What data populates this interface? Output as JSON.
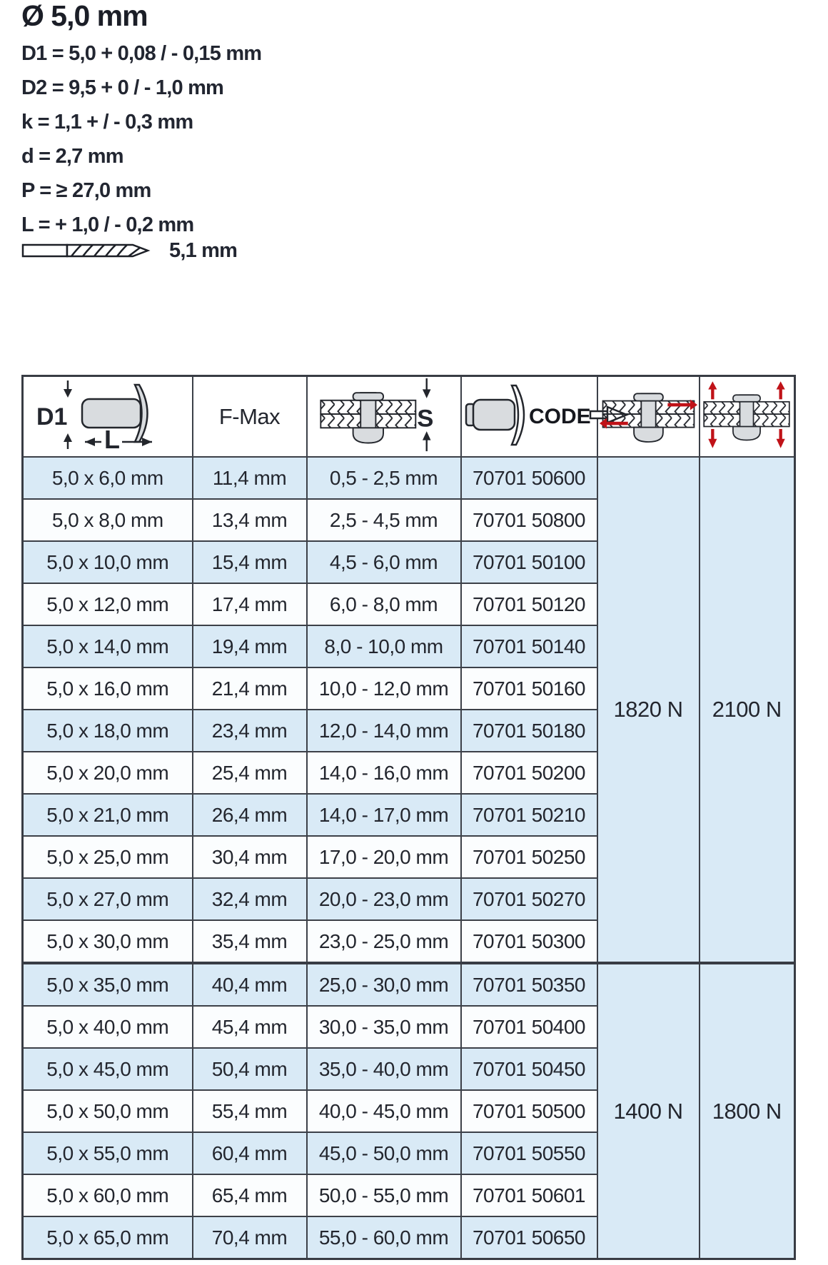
{
  "header": {
    "title": "Ø 5,0 mm",
    "specs": [
      "D1 = 5,0 + 0,08 / - 0,15 mm",
      "D2 = 9,5 + 0 / - 1,0 mm",
      "k = 1,1 + / - 0,3 mm",
      "d = 2,7 mm",
      "P = ≥ 27,0 mm",
      "L = + 1,0 / - 0,2 mm"
    ],
    "drill_size": "5,1 mm"
  },
  "table": {
    "header": {
      "d1_label": "D1",
      "l_label": "L",
      "fmax_label": "F-Max",
      "s_label": "S",
      "code_label": "CODE"
    },
    "rows": [
      {
        "dimension": "5,0 x 6,0 mm",
        "f_max": "11,4 mm",
        "grip_range": "0,5 - 2,5 mm",
        "code": "70701 50600"
      },
      {
        "dimension": "5,0 x 8,0 mm",
        "f_max": "13,4 mm",
        "grip_range": "2,5 - 4,5 mm",
        "code": "70701 50800"
      },
      {
        "dimension": "5,0 x 10,0 mm",
        "f_max": "15,4 mm",
        "grip_range": "4,5 - 6,0 mm",
        "code": "70701 50100"
      },
      {
        "dimension": "5,0 x 12,0 mm",
        "f_max": "17,4 mm",
        "grip_range": "6,0 - 8,0 mm",
        "code": "70701 50120"
      },
      {
        "dimension": "5,0 x 14,0 mm",
        "f_max": "19,4 mm",
        "grip_range": "8,0 - 10,0 mm",
        "code": "70701 50140"
      },
      {
        "dimension": "5,0 x 16,0 mm",
        "f_max": "21,4 mm",
        "grip_range": "10,0 - 12,0 mm",
        "code": "70701 50160"
      },
      {
        "dimension": "5,0 x 18,0 mm",
        "f_max": "23,4 mm",
        "grip_range": "12,0 - 14,0 mm",
        "code": "70701 50180"
      },
      {
        "dimension": "5,0 x 20,0 mm",
        "f_max": "25,4 mm",
        "grip_range": "14,0 - 16,0 mm",
        "code": "70701 50200"
      },
      {
        "dimension": "5,0 x 21,0 mm",
        "f_max": "26,4 mm",
        "grip_range": "14,0 - 17,0 mm",
        "code": "70701 50210"
      },
      {
        "dimension": "5,0 x 25,0 mm",
        "f_max": "30,4 mm",
        "grip_range": "17,0 - 20,0 mm",
        "code": "70701 50250"
      },
      {
        "dimension": "5,0 x 27,0 mm",
        "f_max": "32,4 mm",
        "grip_range": "20,0 - 23,0 mm",
        "code": "70701 50270"
      },
      {
        "dimension": "5,0 x 30,0 mm",
        "f_max": "35,4 mm",
        "grip_range": "23,0 - 25,0 mm",
        "code": "70701 50300"
      },
      {
        "dimension": "5,0 x 35,0 mm",
        "f_max": "40,4 mm",
        "grip_range": "25,0 - 30,0 mm",
        "code": "70701 50350"
      },
      {
        "dimension": "5,0 x 40,0 mm",
        "f_max": "45,4 mm",
        "grip_range": "30,0 - 35,0 mm",
        "code": "70701 50400"
      },
      {
        "dimension": "5,0 x 45,0 mm",
        "f_max": "50,4 mm",
        "grip_range": "35,0 - 40,0 mm",
        "code": "70701 50450"
      },
      {
        "dimension": "5,0 x 50,0 mm",
        "f_max": "55,4 mm",
        "grip_range": "40,0 - 45,0 mm",
        "code": "70701 50500"
      },
      {
        "dimension": "5,0 x 55,0 mm",
        "f_max": "60,4 mm",
        "grip_range": "45,0 - 50,0 mm",
        "code": "70701 50550"
      },
      {
        "dimension": "5,0 x 60,0 mm",
        "f_max": "65,4 mm",
        "grip_range": "50,0 - 55,0 mm",
        "code": "70701 50601"
      },
      {
        "dimension": "5,0 x 65,0 mm",
        "f_max": "70,4 mm",
        "grip_range": "55,0 - 60,0 mm",
        "code": "70701 50650"
      }
    ],
    "groups": [
      {
        "row_span": 12,
        "shear_strength": "1820 N",
        "tensile_strength": "2100 N"
      },
      {
        "row_span": 7,
        "shear_strength": "1400 N",
        "tensile_strength": "1800 N"
      }
    ]
  },
  "colors": {
    "row_blue": "#d9eaf6",
    "row_white": "#fbfdfe",
    "border": "#3c4048",
    "text": "#23262e",
    "arrow_red": "#c01218",
    "rivet_gray": "#d9dcdf"
  }
}
